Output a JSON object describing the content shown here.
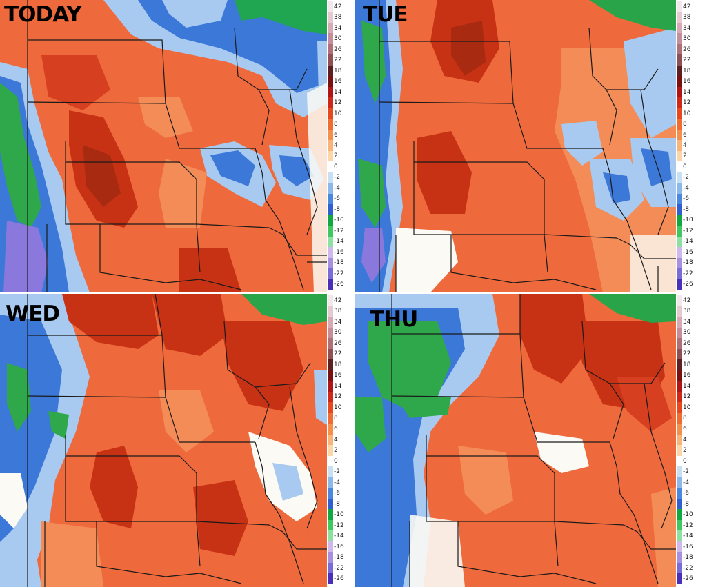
{
  "panels": [
    {
      "id": "today",
      "title": "TODAY"
    },
    {
      "id": "tue",
      "title": "TUE"
    },
    {
      "id": "wed",
      "title": "WED"
    },
    {
      "id": "thu",
      "title": "THU"
    }
  ],
  "legend": {
    "labels": [
      "42",
      "38",
      "34",
      "30",
      "26",
      "22",
      "18",
      "16",
      "14",
      "12",
      "10",
      "8",
      "6",
      "4",
      "2",
      "0",
      "-2",
      "-4",
      "-6",
      "-8",
      "-10",
      "-12",
      "-14",
      "-16",
      "-18",
      "-22",
      "-26"
    ],
    "colors": [
      "#f2e8ec",
      "#e5cad2",
      "#d8aab6",
      "#c68e9a",
      "#b07078",
      "#8e5055",
      "#5c2020",
      "#7a1010",
      "#b01414",
      "#d02818",
      "#e84820",
      "#f06c30",
      "#f4904c",
      "#f8b47a",
      "#fad6a8",
      "#ffffff",
      "#c8e0f4",
      "#8cb8ec",
      "#4a88e0",
      "#2f5fd0",
      "#10a840",
      "#40c860",
      "#8ce0a0",
      "#d0b8ec",
      "#a890e0",
      "#7a6cd8",
      "#4a30b8"
    ]
  },
  "colors": {
    "warm_deep": "#c83214",
    "warm": "#ee6a3c",
    "warm_light": "#f48c58",
    "neutral": "#fbfaf4",
    "cool_light": "#a8caf0",
    "cool": "#3c78d8",
    "cold_green": "#2ea84a",
    "cold_purple": "#8a78dc",
    "border": "#1a1a1a",
    "lake_green": "#1fa84a"
  }
}
